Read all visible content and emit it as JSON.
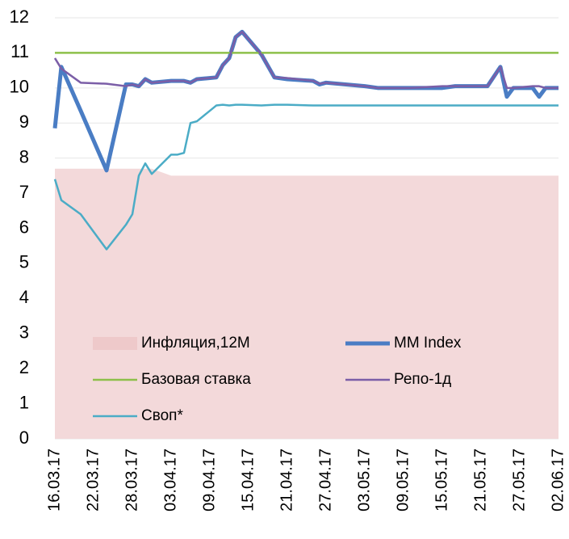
{
  "chart_data": {
    "type": "line",
    "x": [
      "16.03.17",
      "17.03.17",
      "20.03.17",
      "24.03.17",
      "27.03.17",
      "28.03.17",
      "29.03.17",
      "30.03.17",
      "31.03.17",
      "03.04.17",
      "04.04.17",
      "05.04.17",
      "06.04.17",
      "07.04.17",
      "10.04.17",
      "11.04.17",
      "12.04.17",
      "13.04.17",
      "14.04.17",
      "17.04.17",
      "19.04.17",
      "21.04.17",
      "25.04.17",
      "26.04.17",
      "27.04.17",
      "03.05.17",
      "05.05.17",
      "10.05.17",
      "15.05.17",
      "17.05.17",
      "22.05.17",
      "24.05.17",
      "25.05.17",
      "26.05.17",
      "29.05.17",
      "30.05.17",
      "31.05.17",
      "02.06.17"
    ],
    "xlim": [
      "16.03.17",
      "02.06.17"
    ],
    "xticks": [
      "16.03.17",
      "22.03.17",
      "28.03.17",
      "03.04.17",
      "09.04.17",
      "15.04.17",
      "21.04.17",
      "27.04.17",
      "03.05.17",
      "09.05.17",
      "15.05.17",
      "21.05.17",
      "27.05.17",
      "02.06.17"
    ],
    "ylim": [
      0,
      12
    ],
    "yticks": [
      0,
      1,
      2,
      3,
      4,
      5,
      6,
      7,
      8,
      9,
      10,
      11,
      12
    ],
    "grid": true,
    "legend": "inside-bottom-left",
    "series": [
      {
        "name": "Инфляция,12M",
        "kind": "area",
        "color": "#f3d9da",
        "values": [
          7.7,
          7.7,
          7.7,
          7.7,
          7.7,
          7.7,
          7.7,
          7.7,
          7.7,
          7.5,
          7.5,
          7.5,
          7.5,
          7.5,
          7.5,
          7.5,
          7.5,
          7.5,
          7.5,
          7.5,
          7.5,
          7.5,
          7.5,
          7.5,
          7.5,
          7.5,
          7.5,
          7.5,
          7.5,
          7.5,
          7.5,
          7.5,
          7.5,
          7.5,
          7.5,
          7.5,
          7.5,
          7.5
        ]
      },
      {
        "name": "MM Index",
        "kind": "line",
        "color": "#4a7dc4",
        "width": 5,
        "values": [
          8.85,
          10.6,
          9.35,
          7.65,
          10.1,
          10.1,
          10.05,
          10.25,
          10.15,
          10.2,
          10.2,
          10.2,
          10.15,
          10.25,
          10.3,
          10.65,
          10.85,
          11.45,
          11.6,
          10.95,
          10.3,
          10.25,
          10.2,
          10.1,
          10.15,
          10.05,
          10.0,
          10.0,
          10.0,
          10.05,
          10.05,
          10.6,
          9.75,
          10.0,
          10.0,
          9.75,
          10.0,
          10.0
        ]
      },
      {
        "name": "Базовая ставка",
        "kind": "line",
        "color": "#8dc04a",
        "width": 2.5,
        "values": [
          11,
          11,
          11,
          11,
          11,
          11,
          11,
          11,
          11,
          11,
          11,
          11,
          11,
          11,
          11,
          11,
          11,
          11,
          11,
          11,
          11,
          11,
          11,
          11,
          11,
          11,
          11,
          11,
          11,
          11,
          11,
          11,
          11,
          11,
          11,
          11,
          11,
          11
        ]
      },
      {
        "name": "Репо-1д",
        "kind": "line",
        "color": "#7b5ea7",
        "width": 2.5,
        "values": [
          10.85,
          10.55,
          10.15,
          10.12,
          10.05,
          10.1,
          10.05,
          10.25,
          10.15,
          10.2,
          10.2,
          10.2,
          10.15,
          10.25,
          10.3,
          10.65,
          10.85,
          11.45,
          11.6,
          10.95,
          10.3,
          10.28,
          10.2,
          10.12,
          10.15,
          10.05,
          10.0,
          10.0,
          10.05,
          10.05,
          10.05,
          10.6,
          10.0,
          10.0,
          10.05,
          10.05,
          10.0,
          10.0
        ]
      },
      {
        "name": "Своп*",
        "kind": "line",
        "color": "#4bacc6",
        "width": 2.5,
        "values": [
          7.4,
          6.8,
          6.4,
          5.4,
          6.1,
          6.4,
          7.5,
          7.85,
          7.55,
          8.1,
          8.1,
          8.15,
          9.0,
          9.05,
          9.5,
          9.52,
          9.5,
          9.52,
          9.52,
          9.5,
          9.52,
          9.52,
          9.5,
          9.5,
          9.5,
          9.5,
          9.5,
          9.5,
          9.5,
          9.5,
          9.5,
          9.5,
          9.5,
          9.5,
          9.5,
          9.5,
          9.5,
          9.5
        ]
      }
    ]
  }
}
